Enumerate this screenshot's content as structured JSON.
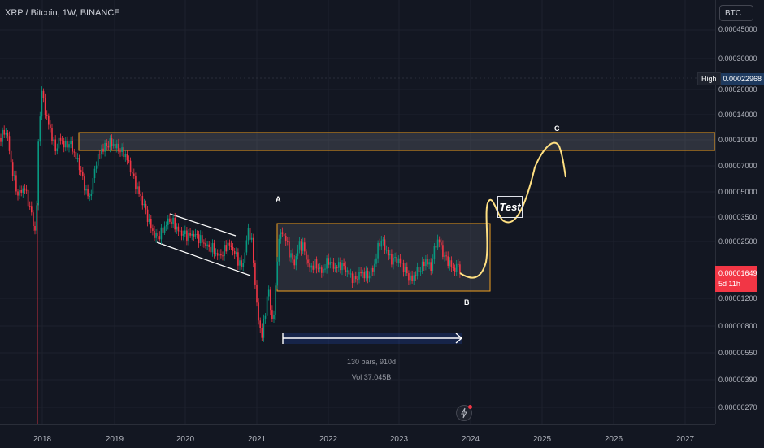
{
  "header": {
    "symbol_title": "XRP / Bitcoin, 1W, BINANCE"
  },
  "price_scale": {
    "currency": "BTC",
    "labels": [
      "0.00045000",
      "0.00030000",
      "0.00020000",
      "0.00014000",
      "0.00010000",
      "0.00007000",
      "0.00005000",
      "0.00003500",
      "0.00002500",
      "0.00001200",
      "0.00000800",
      "0.00000550",
      "0.00000390",
      "0.00000270"
    ],
    "high_label": "High",
    "high_value": "0.00022968",
    "last_price": "0.00001649",
    "countdown": "5d 11h"
  },
  "time_axis": {
    "years": [
      "2018",
      "2019",
      "2020",
      "2021",
      "2022",
      "2023",
      "2024",
      "2025",
      "2026",
      "2027"
    ]
  },
  "measure": {
    "bars": "130 bars, 910d",
    "vol": "Vol 37.045B"
  },
  "annotations": {
    "a": "A",
    "b": "B",
    "c": "C",
    "test": "Test"
  },
  "colors": {
    "background": "#131722",
    "up": "#089981",
    "down": "#f23645",
    "zone_border": "#f0a020",
    "projection": "#ffe082",
    "measure": "#7e57c2"
  },
  "icons": {
    "alert": "lightning-icon"
  }
}
